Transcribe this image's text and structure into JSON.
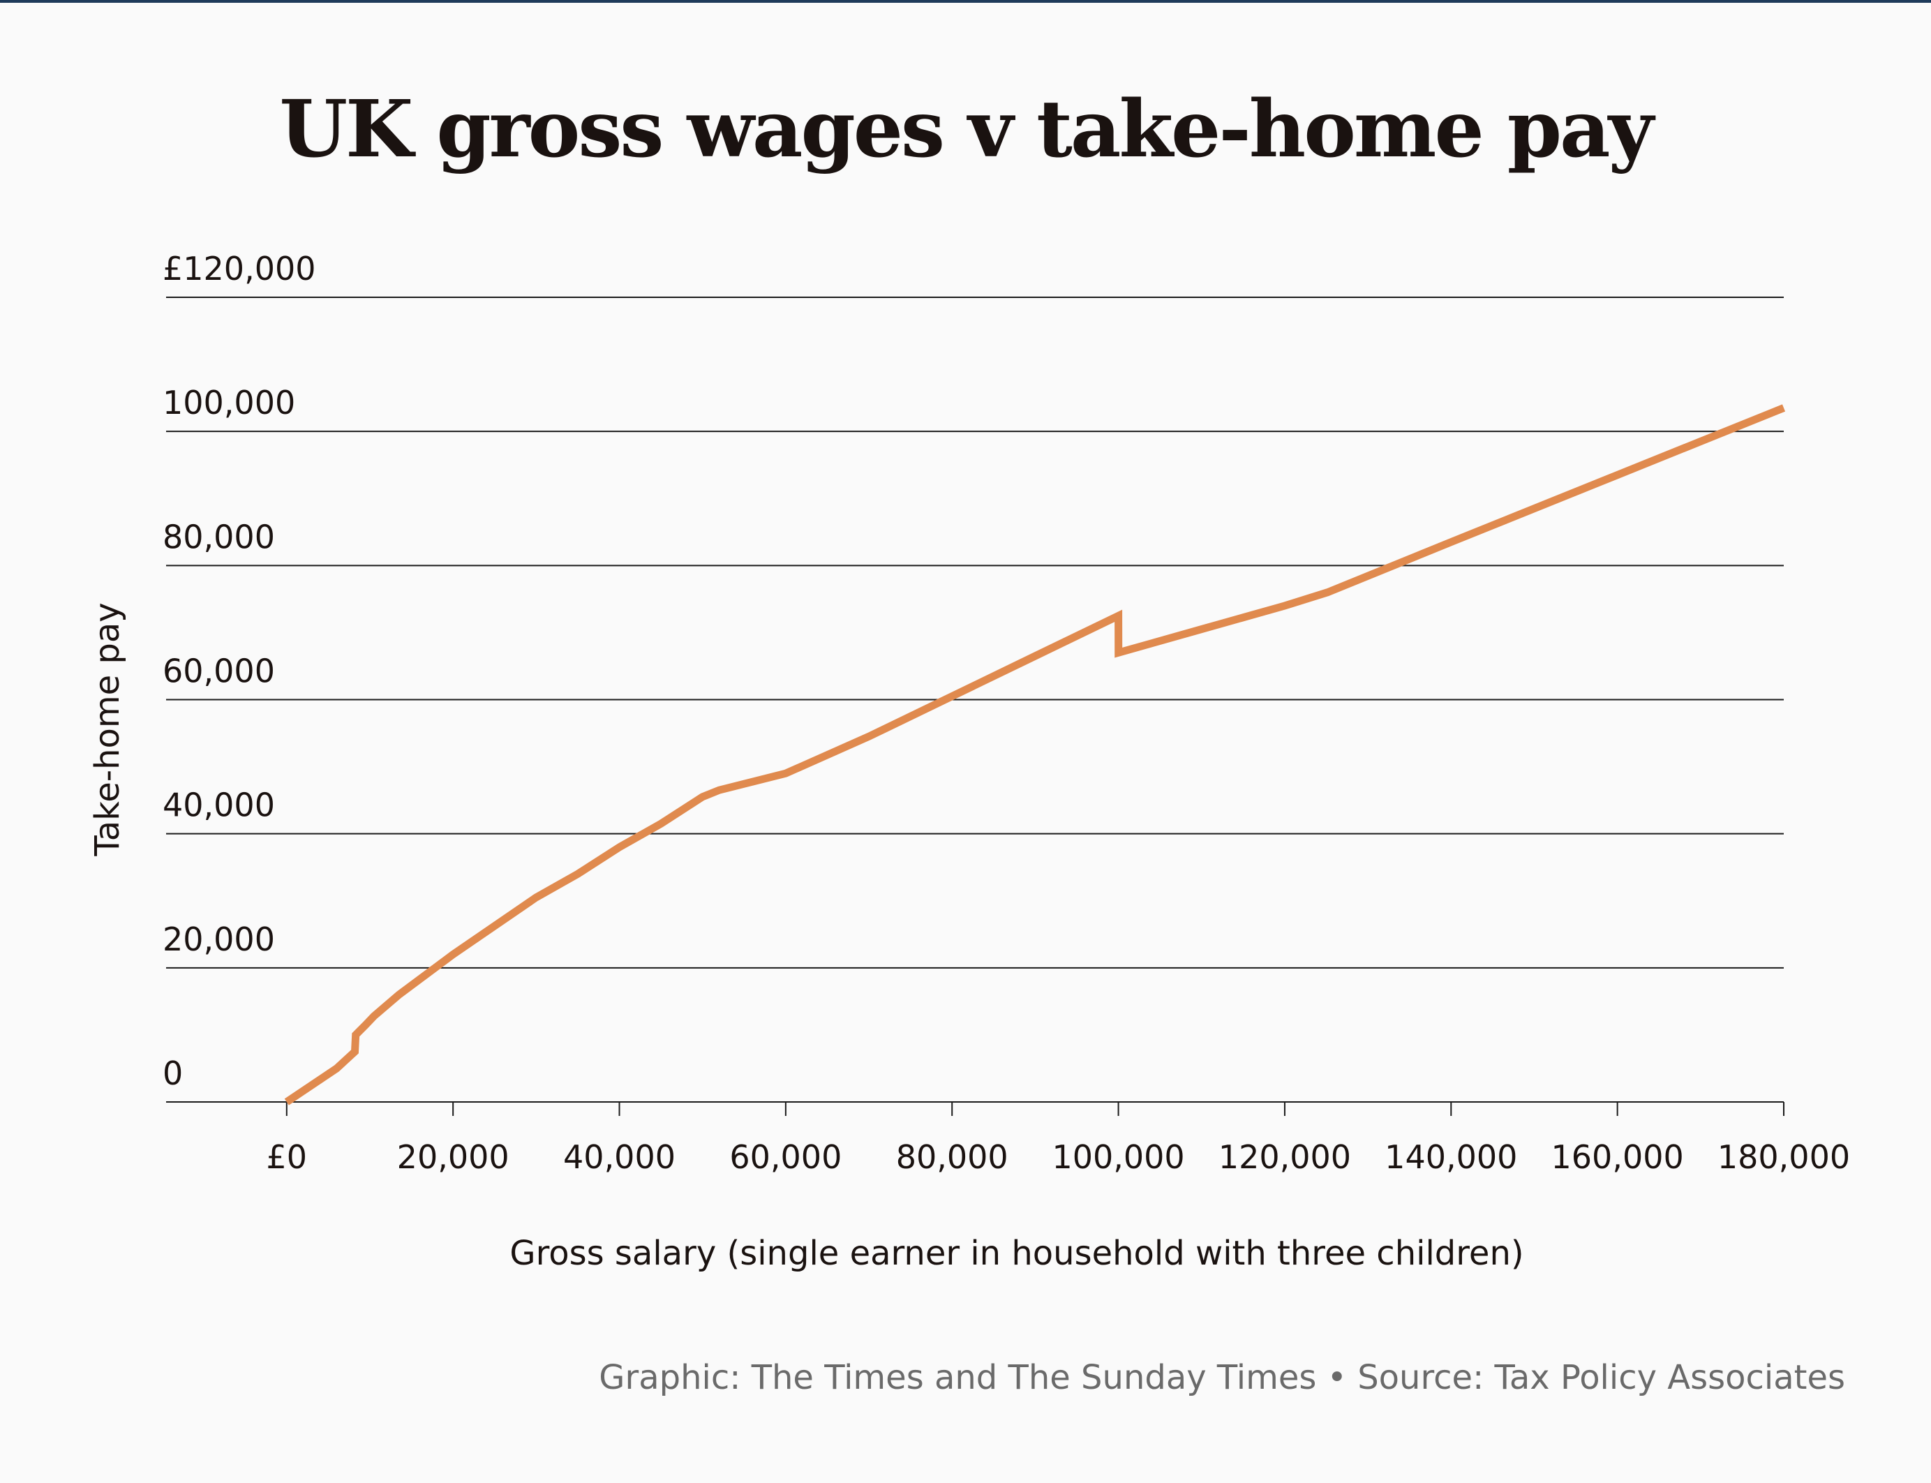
{
  "chart_data": {
    "type": "line",
    "title": "UK gross wages v take-home pay",
    "xlabel": "Gross salary (single earner in household with three children)",
    "ylabel": "Take-home pay",
    "xlim": [
      -14500,
      180000
    ],
    "ylim": [
      0,
      120000
    ],
    "x_ticks": [
      0,
      20000,
      40000,
      60000,
      80000,
      100000,
      120000,
      140000,
      160000,
      180000
    ],
    "x_tick_labels": [
      "£0",
      "20,000",
      "40,000",
      "60,000",
      "80,000",
      "100,000",
      "120,000",
      "140,000",
      "160,000",
      "180,000"
    ],
    "y_ticks": [
      0,
      20000,
      40000,
      60000,
      80000,
      100000,
      120000
    ],
    "y_tick_labels": [
      "0",
      "20,000",
      "40,000",
      "60,000",
      "80,000",
      "100,000",
      "£120,000"
    ],
    "grid": true,
    "legend": "none",
    "series": [
      {
        "color": "#e08a4e",
        "x": [
          0,
          6000,
          8200,
          8300,
          9500,
          10500,
          13500,
          20000,
          30000,
          35000,
          40000,
          45000,
          50000,
          52000,
          60000,
          70000,
          80000,
          90000,
          100000,
          100010,
          110000,
          120000,
          125140,
          140000,
          160000,
          180000
        ],
        "y": [
          0,
          5000,
          7500,
          10000,
          11500,
          12800,
          16000,
          22000,
          30500,
          34000,
          38000,
          41500,
          45500,
          46500,
          49000,
          54500,
          60500,
          66500,
          72500,
          67000,
          70500,
          74000,
          76000,
          83500,
          93500,
          103500
        ]
      }
    ]
  },
  "footer": {
    "credit": "Graphic: The Times and The Sunday Times • Source: Tax Policy Associates"
  }
}
